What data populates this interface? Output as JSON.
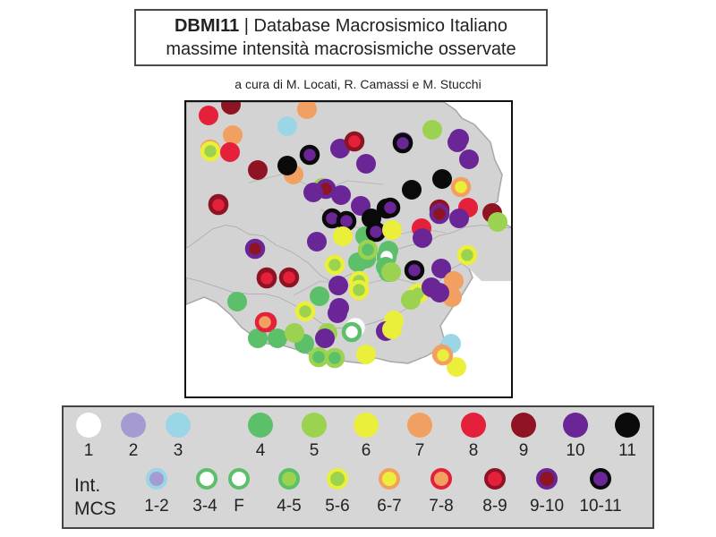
{
  "header": {
    "title_strong": "DBMI11",
    "title_sep": " | ",
    "title_rest": "Database Macrosismico Italiano",
    "subtitle": "massime intensità macrosismiche osservate",
    "credit": "a cura di M. Locati, R. Camassi e M. Stucchi"
  },
  "colors": {
    "1": "#ffffff",
    "2": "#a69ad2",
    "3": "#9bd6e6",
    "4": "#5cbf69",
    "5": "#9bd24f",
    "6": "#ecef3a",
    "7": "#f2a062",
    "8": "#e4203a",
    "9": "#8e1423",
    "10": "#6a2696",
    "11": "#0a0a0a"
  },
  "legend": {
    "int_label": "Int.",
    "mcs_label": "MCS",
    "classes": [
      {
        "label": "1",
        "color": "#ffffff"
      },
      {
        "label": "2",
        "color": "#a69ad2"
      },
      {
        "label": "3",
        "color": "#9bd6e6"
      },
      {
        "label": "4",
        "color": "#5cbf69"
      },
      {
        "label": "5",
        "color": "#9bd24f"
      },
      {
        "label": "6",
        "color": "#ecef3a"
      },
      {
        "label": "7",
        "color": "#f2a062"
      },
      {
        "label": "8",
        "color": "#e4203a"
      },
      {
        "label": "9",
        "color": "#8e1423"
      },
      {
        "label": "10",
        "color": "#6a2696"
      },
      {
        "label": "11",
        "color": "#0a0a0a"
      }
    ],
    "intermediate": [
      {
        "label": "1-2",
        "outer": "#9bd6e6",
        "inner": "#a69ad2"
      },
      {
        "label": "3-4",
        "outer": "#5cbf69",
        "inner": "#ffffff"
      },
      {
        "label": "F",
        "outer": "#5cbf69",
        "inner": "#ffffff"
      },
      {
        "label": "4-5",
        "outer": "#5cbf69",
        "inner": "#9bd24f"
      },
      {
        "label": "5-6",
        "outer": "#ecef3a",
        "inner": "#9bd24f"
      },
      {
        "label": "6-7",
        "outer": "#f2a062",
        "inner": "#ecef3a"
      },
      {
        "label": "7-8",
        "outer": "#e4203a",
        "inner": "#f2a062"
      },
      {
        "label": "8-9",
        "outer": "#8e1423",
        "inner": "#e4203a"
      },
      {
        "label": "9-10",
        "outer": "#6a2696",
        "inner": "#8e1423"
      },
      {
        "label": "10-11",
        "outer": "#0a0a0a",
        "inner": "#6a2696"
      }
    ]
  },
  "map_points": [
    {
      "i": "8"
    },
    {
      "i": "9"
    },
    {
      "i": "7"
    },
    {
      "i": "3"
    },
    {
      "i": "7"
    },
    {
      "i": "6-7"
    },
    {
      "i": "5-6"
    },
    {
      "i": "8"
    },
    {
      "i": "9"
    },
    {
      "i": "7"
    },
    {
      "i": "10-11"
    },
    {
      "i": "11"
    },
    {
      "i": "10"
    },
    {
      "i": "8-9"
    },
    {
      "i": "9-10"
    },
    {
      "i": "5"
    },
    {
      "i": "10"
    },
    {
      "i": "10-11"
    },
    {
      "i": "10"
    },
    {
      "i": "10"
    },
    {
      "i": "10"
    },
    {
      "i": "8-9"
    },
    {
      "i": "5"
    },
    {
      "i": "9-10"
    },
    {
      "i": "6-7"
    },
    {
      "i": "10"
    },
    {
      "i": "11"
    },
    {
      "i": "11"
    },
    {
      "i": "8-9"
    },
    {
      "i": "8"
    },
    {
      "i": "9"
    },
    {
      "i": "5"
    },
    {
      "i": "8-9"
    },
    {
      "i": "10"
    },
    {
      "i": "10-11"
    },
    {
      "i": "10-11"
    },
    {
      "i": "10"
    },
    {
      "i": "10-11"
    },
    {
      "i": "10-11"
    },
    {
      "i": "11"
    },
    {
      "i": "6"
    },
    {
      "i": "4"
    },
    {
      "i": "10"
    },
    {
      "i": "10-11"
    },
    {
      "i": "8"
    },
    {
      "i": "6"
    },
    {
      "i": "9-10"
    },
    {
      "i": "10"
    },
    {
      "i": "4"
    },
    {
      "i": "4"
    },
    {
      "i": "4"
    },
    {
      "i": "F"
    },
    {
      "i": "4-5"
    },
    {
      "i": "4"
    },
    {
      "i": "5-6"
    },
    {
      "i": "8-9"
    },
    {
      "i": "8-9"
    },
    {
      "i": "4"
    },
    {
      "i": "4"
    },
    {
      "i": "10-11"
    },
    {
      "i": "10"
    },
    {
      "i": "5-6"
    },
    {
      "i": "7"
    },
    {
      "i": "7"
    },
    {
      "i": "7"
    },
    {
      "i": "10"
    },
    {
      "i": "5-6"
    },
    {
      "i": "5-6"
    },
    {
      "i": "10"
    },
    {
      "i": "10"
    },
    {
      "i": "4"
    },
    {
      "i": "7-8"
    },
    {
      "i": "6"
    },
    {
      "i": "1"
    },
    {
      "i": "4"
    },
    {
      "i": "4"
    },
    {
      "i": "4"
    },
    {
      "i": "3-4"
    },
    {
      "i": "10"
    },
    {
      "i": "5"
    },
    {
      "i": "10"
    },
    {
      "i": "3"
    },
    {
      "i": "6-7"
    },
    {
      "i": "6"
    },
    {
      "i": "4-5"
    },
    {
      "i": "4-5"
    },
    {
      "i": "6"
    },
    {
      "i": "5-6"
    },
    {
      "i": "10"
    },
    {
      "i": "10"
    },
    {
      "i": "9-10"
    },
    {
      "i": "10"
    },
    {
      "i": "5"
    },
    {
      "i": "8-9"
    },
    {
      "i": "5-6"
    },
    {
      "i": "5"
    },
    {
      "i": "6"
    },
    {
      "i": "5"
    },
    {
      "i": "7-8"
    },
    {
      "i": "6-7"
    }
  ]
}
